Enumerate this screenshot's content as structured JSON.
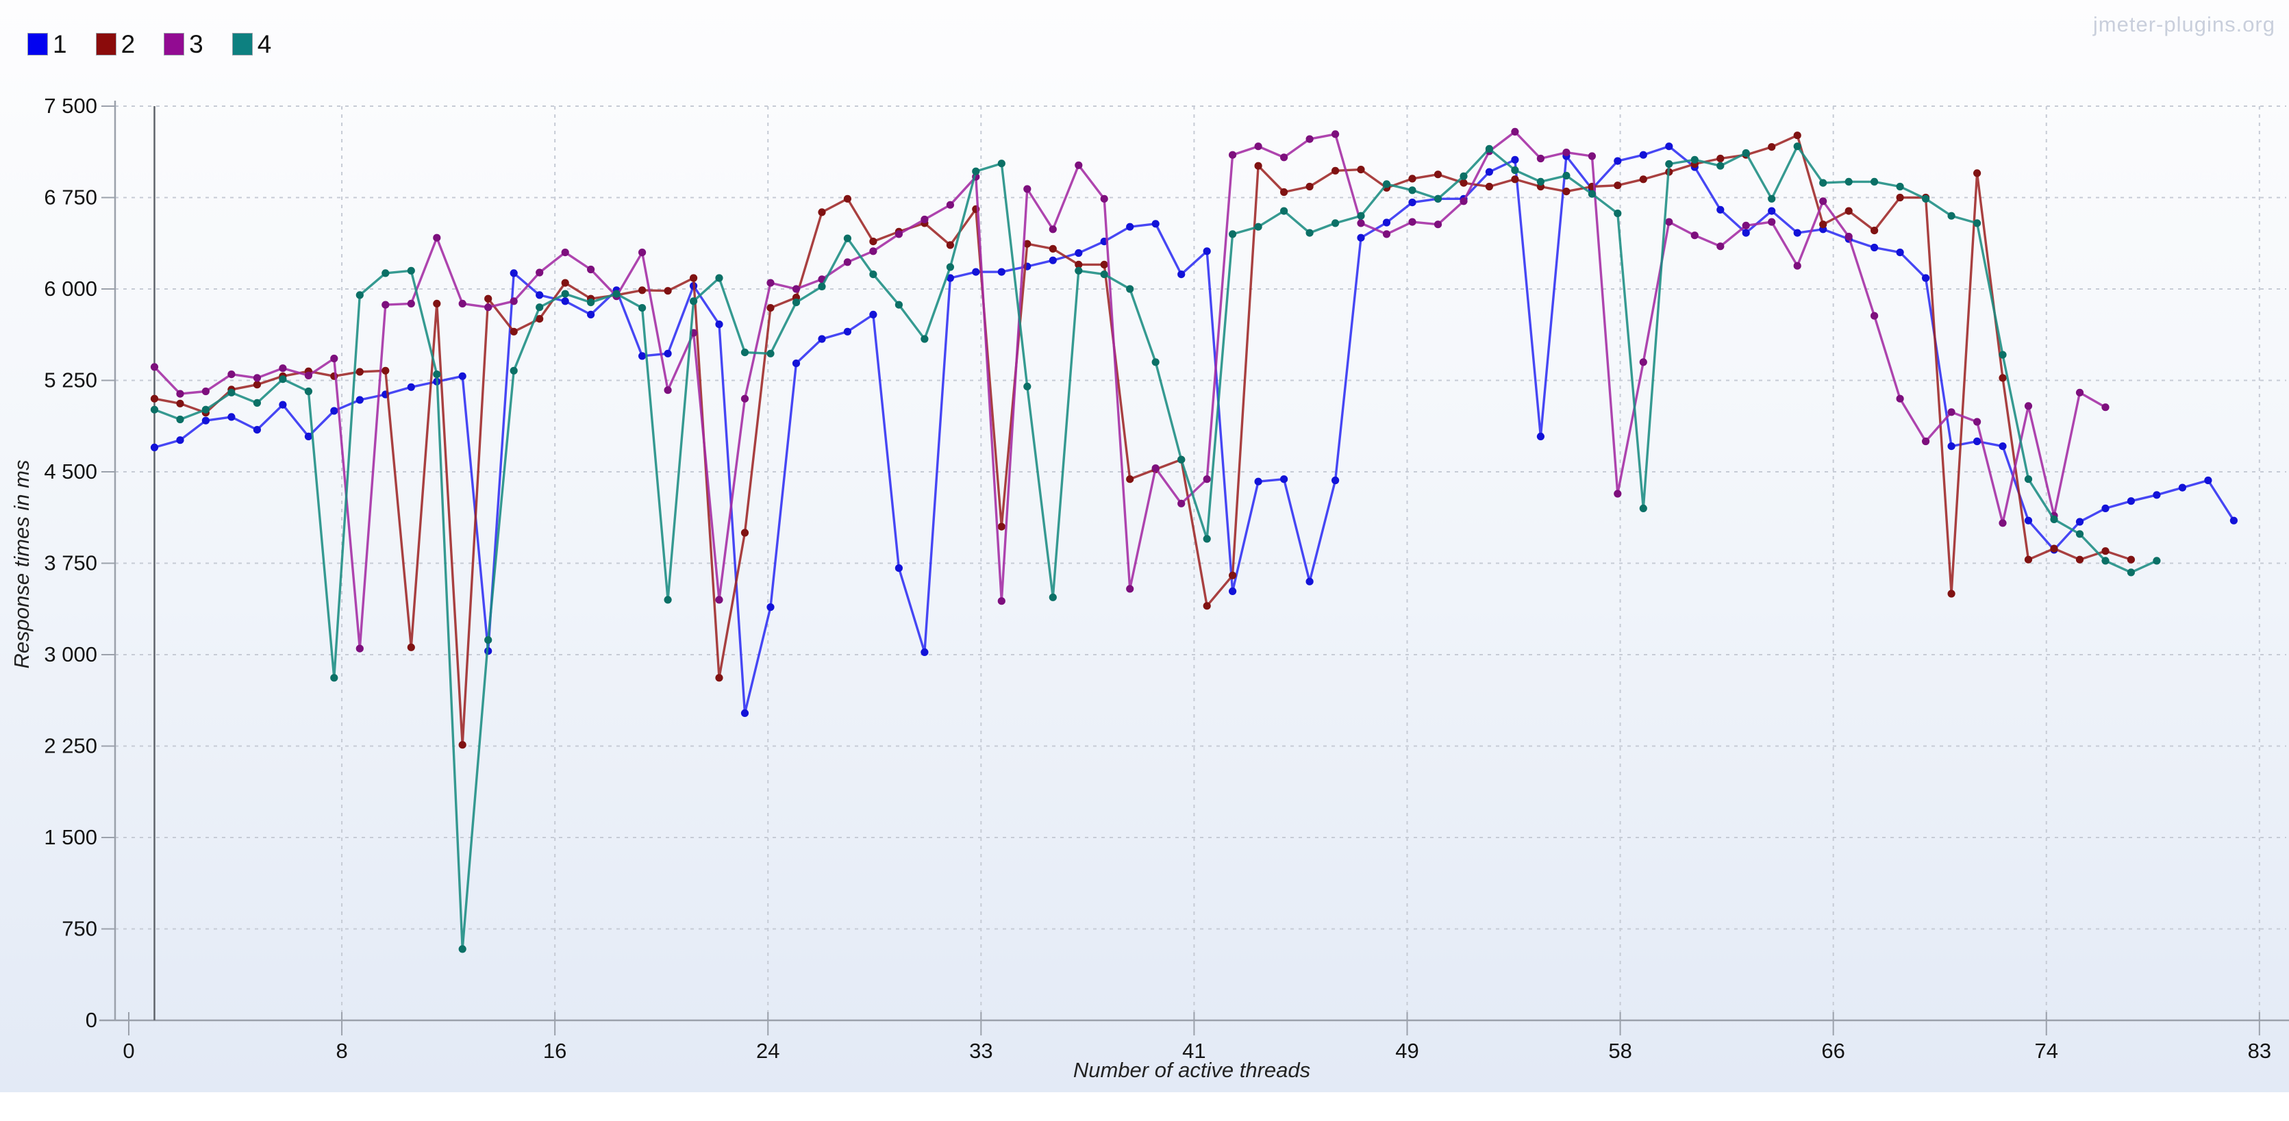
{
  "watermark": "jmeter-plugins.org",
  "legend": [
    {
      "label": "1",
      "color": "#0202f0"
    },
    {
      "label": "2",
      "color": "#8b0b0b"
    },
    {
      "label": "3",
      "color": "#920b92"
    },
    {
      "label": "4",
      "color": "#0d8080"
    }
  ],
  "chart_data": {
    "type": "line",
    "title": "",
    "xlabel": "Number of active threads",
    "ylabel": "Response times in ms",
    "xlim": [
      0,
      84
    ],
    "ylim": [
      0,
      7500
    ],
    "x_tick_positions": [
      0,
      8.3,
      16.6,
      24.9,
      33.2,
      41.5,
      49.8,
      58.1,
      66.4,
      74.7,
      83
    ],
    "x_tick_labels": [
      "0",
      "8",
      "16",
      "24",
      "33",
      "41",
      "49",
      "58",
      "66",
      "74",
      "83"
    ],
    "y_ticks": [
      0,
      750,
      1500,
      2250,
      3000,
      3750,
      4500,
      5250,
      6000,
      6750,
      7500
    ],
    "y_tick_labels": [
      "0",
      "750",
      "1 500",
      "2 250",
      "3 000",
      "3 750",
      "4 500",
      "5 250",
      "6 000",
      "6 750",
      "7 500"
    ],
    "grid": true,
    "legend_position": "top-left",
    "vertical_marker_x": 1,
    "series": [
      {
        "name": "1",
        "color": "#2d2df2",
        "marker_color": "#1212d8",
        "x_start": 1,
        "x_step": 1,
        "values": [
          4700,
          4760,
          4920,
          4950,
          4845,
          5050,
          4790,
          5000,
          5090,
          5135,
          5195,
          5240,
          5285,
          3030,
          6130,
          5950,
          5900,
          5790,
          5990,
          5450,
          5470,
          6025,
          5710,
          2520,
          3390,
          5390,
          5590,
          5650,
          5790,
          3710,
          3020,
          6090,
          6140,
          6140,
          6185,
          6235,
          6295,
          6390,
          6510,
          6535,
          6120,
          6310,
          3520,
          4420,
          4440,
          3600,
          4430,
          6420,
          6545,
          6710,
          6740,
          6740,
          6960,
          7060,
          4790,
          7090,
          6820,
          7050,
          7100,
          7170,
          7000,
          6650,
          6460,
          6640,
          6460,
          6490,
          6410,
          6340,
          6300,
          6090,
          4710,
          4750,
          4710,
          4100,
          3860,
          4090,
          4200,
          4260,
          4310,
          4370,
          4430,
          4100
        ]
      },
      {
        "name": "2",
        "color": "#9d2525",
        "marker_color": "#801212",
        "x_start": 1,
        "x_step": 1,
        "values": [
          5100,
          5060,
          4985,
          5175,
          5215,
          5285,
          5325,
          5285,
          5320,
          5330,
          3060,
          5880,
          2260,
          5920,
          5650,
          5755,
          6050,
          5920,
          5950,
          5990,
          5985,
          6090,
          2810,
          4000,
          5845,
          5930,
          6630,
          6740,
          6390,
          6470,
          6540,
          6360,
          6655,
          4050,
          6370,
          6330,
          6200,
          6200,
          4440,
          4520,
          4600,
          3400,
          3650,
          7010,
          6795,
          6840,
          6970,
          6980,
          6830,
          6905,
          6940,
          6870,
          6840,
          6900,
          6840,
          6800,
          6840,
          6850,
          6900,
          6960,
          7025,
          7070,
          7100,
          7165,
          7260,
          6530,
          6640,
          6480,
          6750,
          6750,
          3500,
          6950,
          5270,
          3780,
          3870,
          3780,
          3850,
          3780
        ]
      },
      {
        "name": "3",
        "color": "#a32aa3",
        "marker_color": "#7d0f7d",
        "x_start": 1,
        "x_step": 1,
        "values": [
          5360,
          5140,
          5160,
          5300,
          5270,
          5350,
          5290,
          5430,
          3050,
          5870,
          5880,
          6420,
          5880,
          5850,
          5900,
          6135,
          6300,
          6160,
          5940,
          6300,
          5170,
          5640,
          3450,
          5100,
          6050,
          6000,
          6080,
          6220,
          6310,
          6450,
          6570,
          6690,
          6920,
          3440,
          6820,
          6490,
          7015,
          6740,
          3540,
          4530,
          4240,
          4440,
          7100,
          7170,
          7080,
          7230,
          7270,
          6540,
          6450,
          6550,
          6530,
          6720,
          7130,
          7290,
          7070,
          7120,
          7090,
          4320,
          5400,
          6550,
          6440,
          6350,
          6520,
          6550,
          6190,
          6720,
          6430,
          5780,
          5100,
          4750,
          4990,
          4910,
          4080,
          5040,
          4140,
          5150,
          5030
        ]
      },
      {
        "name": "4",
        "color": "#1a8c82",
        "marker_color": "#0b7066",
        "x_start": 1,
        "x_step": 1,
        "values": [
          5010,
          4930,
          5010,
          5150,
          5065,
          5260,
          5160,
          2810,
          5950,
          6130,
          6150,
          5300,
          585,
          3120,
          5330,
          5850,
          5960,
          5890,
          5960,
          5845,
          3450,
          5900,
          6090,
          5480,
          5470,
          5890,
          6020,
          6415,
          6120,
          5870,
          5590,
          6180,
          6965,
          7030,
          5200,
          3470,
          6150,
          6120,
          6000,
          5400,
          4600,
          3950,
          6450,
          6510,
          6640,
          6460,
          6540,
          6600,
          6860,
          6810,
          6740,
          6925,
          7150,
          6975,
          6880,
          6930,
          6780,
          6620,
          4200,
          7025,
          7060,
          7010,
          7115,
          6740,
          7170,
          6870,
          6880,
          6880,
          6840,
          6740,
          6600,
          6540,
          5460,
          4440,
          4110,
          3990,
          3770,
          3675,
          3770
        ]
      }
    ]
  }
}
